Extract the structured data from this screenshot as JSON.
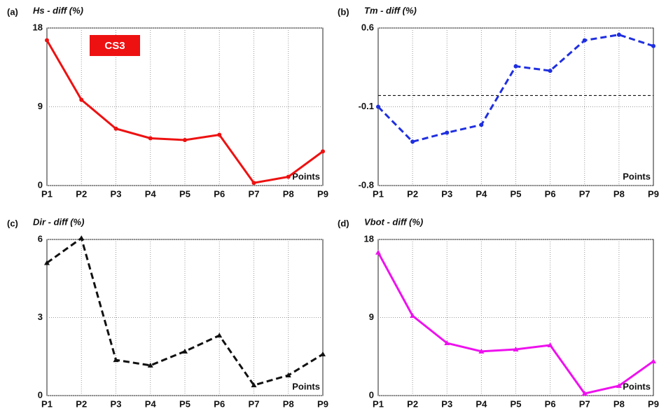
{
  "chart_data": [
    {
      "type": "line",
      "panel_label": "(a)",
      "title": "Hs - diff (%)",
      "xlabel": "Points",
      "annotation": "CS3",
      "annotation_color": "#ee1111",
      "categories": [
        "P1",
        "P2",
        "P3",
        "P4",
        "P5",
        "P6",
        "P7",
        "P8",
        "P9"
      ],
      "series": [
        {
          "color": "#ee1111",
          "dashed": false,
          "marker": "circle",
          "values": [
            16.6,
            9.8,
            6.5,
            5.4,
            5.2,
            5.8,
            0.3,
            1.0,
            3.9
          ]
        }
      ],
      "ylim": [
        0,
        18
      ],
      "yticks": [
        0,
        9,
        18
      ],
      "grid": true
    },
    {
      "type": "line",
      "panel_label": "(b)",
      "title": "Tm - diff (%)",
      "xlabel": "Points",
      "hline": 0,
      "categories": [
        "P1",
        "P2",
        "P3",
        "P4",
        "P5",
        "P6",
        "P7",
        "P8",
        "P9"
      ],
      "series": [
        {
          "color": "#1f2fe0",
          "dashed": true,
          "marker": "circle",
          "values": [
            -0.1,
            -0.41,
            -0.33,
            -0.26,
            0.26,
            0.22,
            0.49,
            0.54,
            0.44
          ]
        }
      ],
      "ylim": [
        -0.8,
        0.6
      ],
      "yticks": [
        -0.8,
        -0.1,
        0.6
      ],
      "grid": true
    },
    {
      "type": "line",
      "panel_label": "(c)",
      "title": "Dir - diff (%)",
      "xlabel": "Points",
      "categories": [
        "P1",
        "P2",
        "P3",
        "P4",
        "P5",
        "P6",
        "P7",
        "P8",
        "P9"
      ],
      "series": [
        {
          "color": "#111111",
          "dashed": true,
          "marker": "triangle",
          "values": [
            5.1,
            6.05,
            1.37,
            1.16,
            1.7,
            2.31,
            0.4,
            0.78,
            1.59
          ]
        }
      ],
      "ylim": [
        0,
        6
      ],
      "yticks": [
        0,
        3,
        6
      ],
      "grid": true
    },
    {
      "type": "line",
      "panel_label": "(d)",
      "title": "Vbot - diff (%)",
      "xlabel": "Points",
      "categories": [
        "P1",
        "P2",
        "P3",
        "P4",
        "P5",
        "P6",
        "P7",
        "P8",
        "P9"
      ],
      "series": [
        {
          "color": "#ee11ee",
          "dashed": false,
          "marker": "triangle",
          "values": [
            16.5,
            9.2,
            6.05,
            5.1,
            5.33,
            5.81,
            0.24,
            1.13,
            3.96
          ]
        }
      ],
      "ylim": [
        0,
        18
      ],
      "yticks": [
        0,
        9,
        18
      ],
      "grid": true
    }
  ]
}
